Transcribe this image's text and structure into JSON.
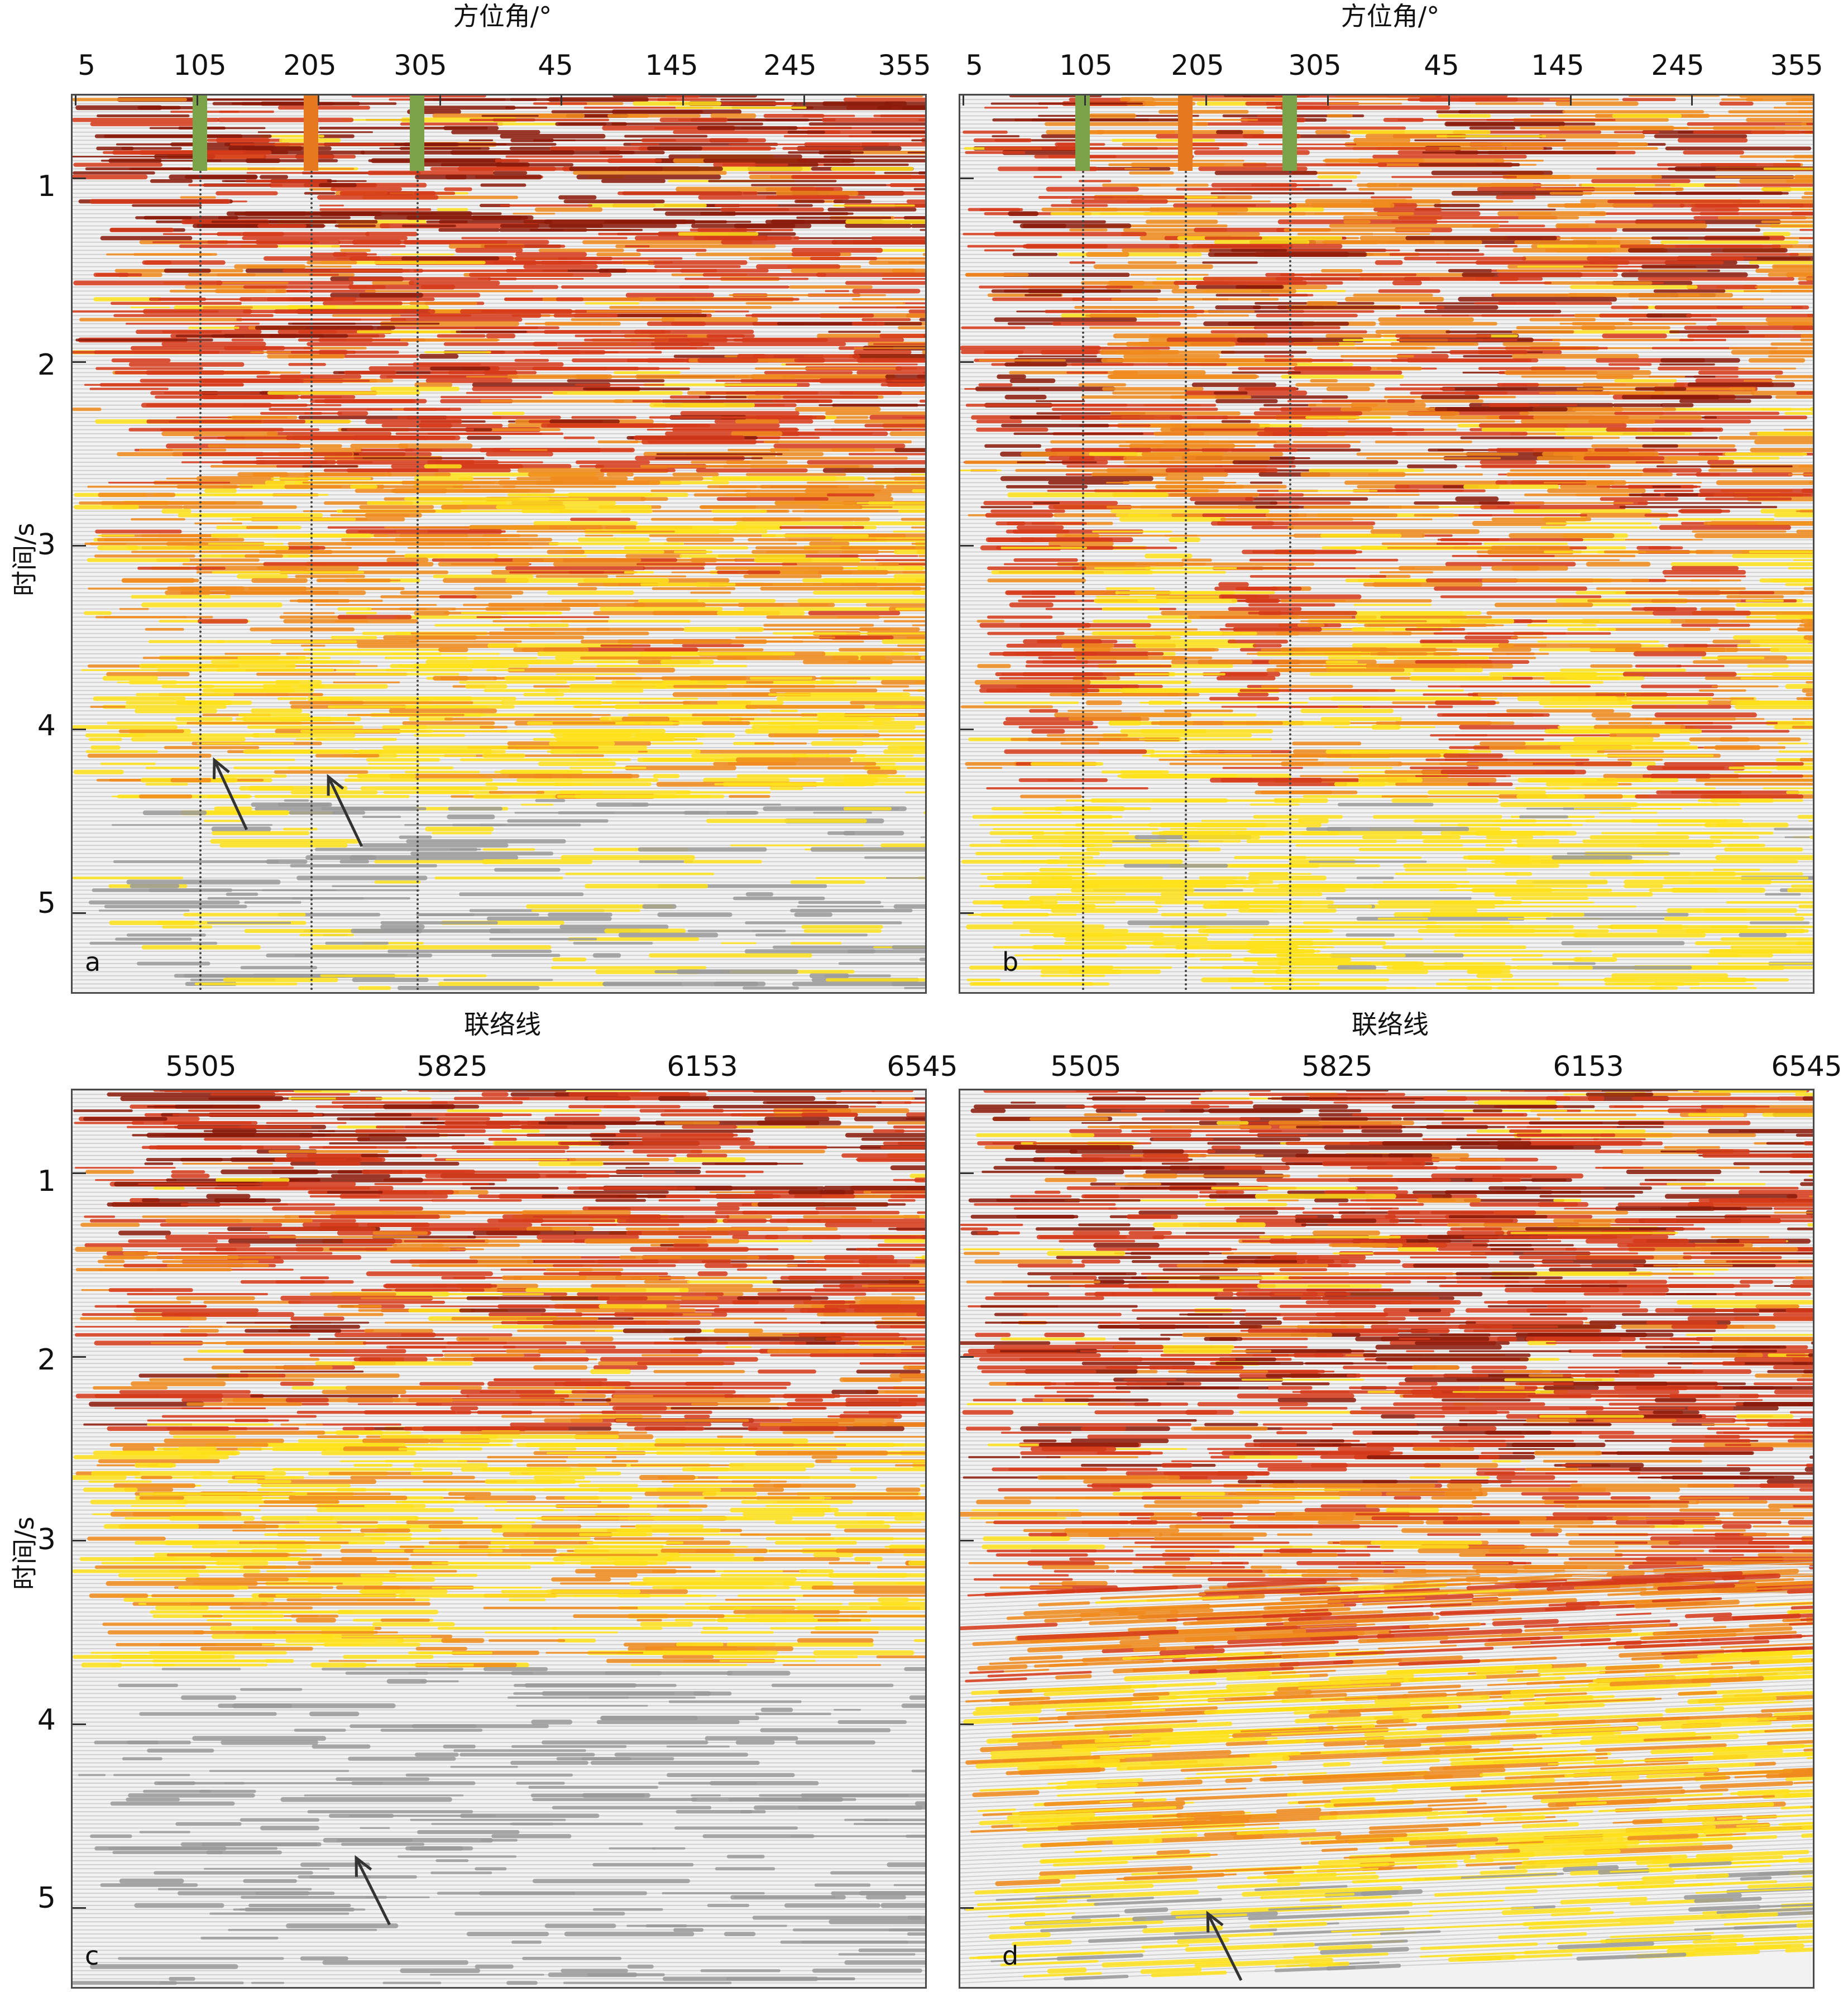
{
  "figure": {
    "panels": [
      {
        "id": "a",
        "letter": "a",
        "x_title": "方位角/°",
        "x_ticks": [
          "5",
          "105",
          "205",
          "305",
          "45",
          "145",
          "245",
          "355"
        ],
        "y_title": "时间/s",
        "y_ticks": [
          "1",
          "2",
          "3",
          "4",
          "5"
        ],
        "markers": [
          {
            "label": "105",
            "color": "#7aa34a"
          },
          {
            "label": "205",
            "color": "#e67820"
          },
          {
            "label": "305",
            "color": "#7aa34a"
          }
        ],
        "arrows": 2
      },
      {
        "id": "b",
        "letter": "b",
        "x_title": "方位角/°",
        "x_ticks": [
          "5",
          "105",
          "205",
          "305",
          "45",
          "145",
          "245",
          "355"
        ],
        "y_title": "",
        "y_ticks": [],
        "markers": [
          {
            "label": "105",
            "color": "#7aa34a"
          },
          {
            "label": "205",
            "color": "#e67820"
          },
          {
            "label": "305",
            "color": "#7aa34a"
          }
        ],
        "arrows": 0
      },
      {
        "id": "c",
        "letter": "c",
        "x_title": "联络线",
        "x_ticks": [
          "5505",
          "5825",
          "6153",
          "6545"
        ],
        "y_title": "时间/s",
        "y_ticks": [
          "1",
          "2",
          "3",
          "4",
          "5"
        ],
        "markers": [],
        "arrows": 1
      },
      {
        "id": "d",
        "letter": "d",
        "x_title": "联络线",
        "x_ticks": [
          "5505",
          "5825",
          "6153",
          "6545"
        ],
        "y_title": "",
        "y_ticks": [],
        "markers": [],
        "arrows": 1
      }
    ],
    "colors": {
      "dark_red": "#8b1a0a",
      "red": "#d63a1a",
      "orange": "#f08a1c",
      "yellow": "#ffe21a",
      "gray": "#9a9a9a",
      "background": "#f2f2f2"
    }
  }
}
